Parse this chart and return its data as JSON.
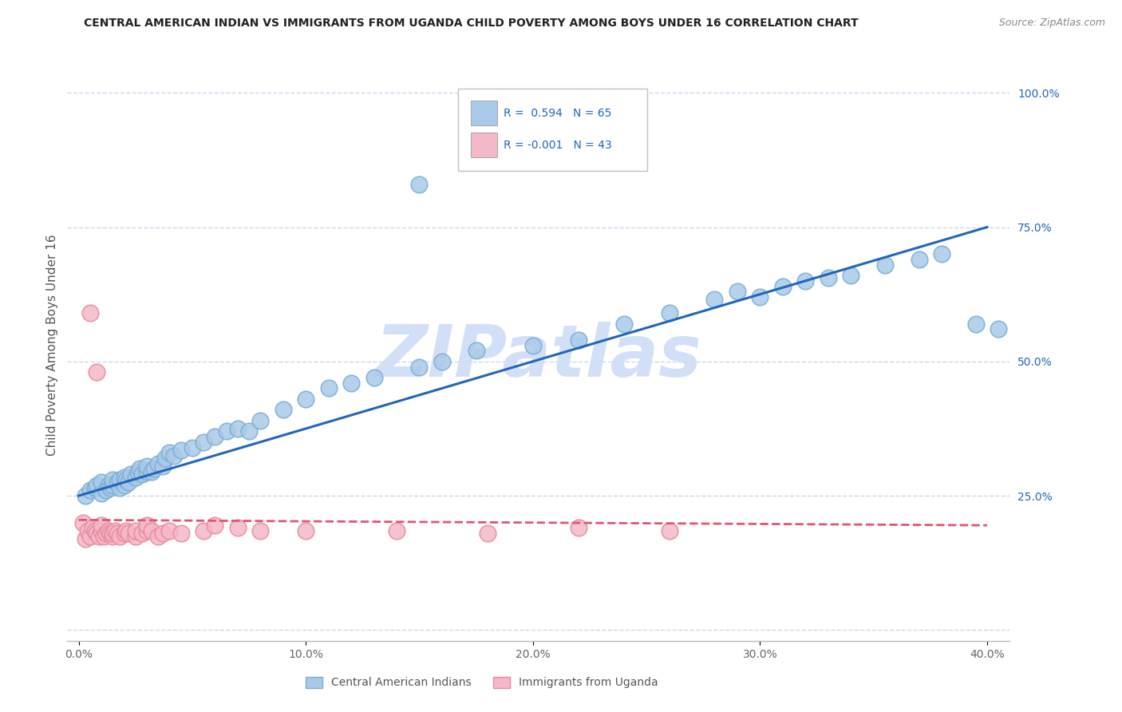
{
  "title": "CENTRAL AMERICAN INDIAN VS IMMIGRANTS FROM UGANDA CHILD POVERTY AMONG BOYS UNDER 16 CORRELATION CHART",
  "source": "Source: ZipAtlas.com",
  "ylabel": "Child Poverty Among Boys Under 16",
  "xlim": [
    -0.005,
    0.41
  ],
  "ylim": [
    -0.02,
    1.08
  ],
  "xticks": [
    0.0,
    0.1,
    0.2,
    0.3,
    0.4
  ],
  "xtick_labels": [
    "0.0%",
    "10.0%",
    "20.0%",
    "30.0%",
    "40.0%"
  ],
  "ytick_positions": [
    0.0,
    0.25,
    0.5,
    0.75,
    1.0
  ],
  "ytick_labels": [
    "",
    "25.0%",
    "50.0%",
    "75.0%",
    "100.0%"
  ],
  "R_blue": 0.594,
  "N_blue": 65,
  "R_pink": -0.001,
  "N_pink": 43,
  "blue_color": "#aac9e8",
  "pink_color": "#f4b8c8",
  "blue_edge_color": "#7aadd4",
  "pink_edge_color": "#e8899a",
  "blue_line_color": "#2266bb",
  "pink_line_color": "#e05575",
  "watermark": "ZIPatlas",
  "watermark_color": "#ccddf5",
  "background_color": "#ffffff",
  "grid_color": "#c8d8ee",
  "blue_x": [
    0.003,
    0.005,
    0.007,
    0.008,
    0.01,
    0.01,
    0.012,
    0.013,
    0.014,
    0.015,
    0.015,
    0.017,
    0.018,
    0.018,
    0.02,
    0.02,
    0.021,
    0.022,
    0.023,
    0.025,
    0.026,
    0.027,
    0.028,
    0.03,
    0.03,
    0.032,
    0.033,
    0.035,
    0.037,
    0.038,
    0.04,
    0.042,
    0.045,
    0.05,
    0.055,
    0.06,
    0.065,
    0.07,
    0.075,
    0.08,
    0.09,
    0.1,
    0.11,
    0.12,
    0.13,
    0.15,
    0.16,
    0.175,
    0.2,
    0.22,
    0.24,
    0.26,
    0.28,
    0.29,
    0.3,
    0.31,
    0.32,
    0.33,
    0.34,
    0.355,
    0.37,
    0.38,
    0.395,
    0.405,
    0.15
  ],
  "blue_y": [
    0.25,
    0.26,
    0.265,
    0.27,
    0.255,
    0.275,
    0.26,
    0.27,
    0.265,
    0.27,
    0.28,
    0.275,
    0.265,
    0.28,
    0.27,
    0.285,
    0.28,
    0.275,
    0.29,
    0.285,
    0.295,
    0.3,
    0.29,
    0.295,
    0.305,
    0.295,
    0.3,
    0.31,
    0.305,
    0.32,
    0.33,
    0.325,
    0.335,
    0.34,
    0.35,
    0.36,
    0.37,
    0.375,
    0.37,
    0.39,
    0.41,
    0.43,
    0.45,
    0.46,
    0.47,
    0.49,
    0.5,
    0.52,
    0.53,
    0.54,
    0.57,
    0.59,
    0.615,
    0.63,
    0.62,
    0.64,
    0.65,
    0.655,
    0.66,
    0.68,
    0.69,
    0.7,
    0.57,
    0.56,
    0.83
  ],
  "pink_x": [
    0.002,
    0.003,
    0.004,
    0.005,
    0.006,
    0.007,
    0.008,
    0.009,
    0.01,
    0.01,
    0.011,
    0.012,
    0.013,
    0.014,
    0.015,
    0.015,
    0.016,
    0.017,
    0.018,
    0.02,
    0.021,
    0.022,
    0.025,
    0.025,
    0.028,
    0.03,
    0.03,
    0.032,
    0.035,
    0.037,
    0.04,
    0.045,
    0.055,
    0.06,
    0.07,
    0.08,
    0.1,
    0.14,
    0.18,
    0.22,
    0.26,
    0.005,
    0.008
  ],
  "pink_y": [
    0.2,
    0.17,
    0.185,
    0.175,
    0.19,
    0.185,
    0.18,
    0.175,
    0.185,
    0.195,
    0.175,
    0.18,
    0.185,
    0.18,
    0.175,
    0.18,
    0.185,
    0.18,
    0.175,
    0.18,
    0.185,
    0.18,
    0.175,
    0.185,
    0.18,
    0.185,
    0.195,
    0.185,
    0.175,
    0.18,
    0.185,
    0.18,
    0.185,
    0.195,
    0.19,
    0.185,
    0.185,
    0.185,
    0.18,
    0.19,
    0.185,
    0.59,
    0.48
  ]
}
